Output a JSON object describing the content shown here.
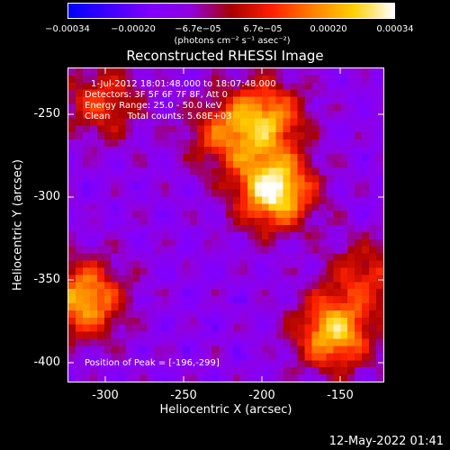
{
  "colorbar": {
    "tick_labels": [
      "−0.00034",
      "−0.00020",
      "−6.7e−05",
      "6.7e−05",
      "0.00020",
      "0.00034"
    ],
    "units": "(photons cm⁻² s⁻¹ asec⁻²)",
    "colors": [
      "#0000ff",
      "#4000ff",
      "#8000ff",
      "#9000e0",
      "#a80000",
      "#ff2000",
      "#ff8000",
      "#ffd000",
      "#ffffff"
    ]
  },
  "title": "Reconstructed RHESSI Image",
  "annotations": {
    "time_range": "1-Jul-2012 18:01:48.000 to 18:07:48.000",
    "detectors": "Detectors: 3F 5F 6F 7F 8F, Att 0",
    "energy_range": "Energy Range: 25.0 - 50.0 keV",
    "clean_counts": "Clean      Total counts: 5.68E+03",
    "peak_position": "Position of Peak = [-196,-299]"
  },
  "x_axis": {
    "label": "Heliocentric X (arcsec)",
    "ticks": [
      "-300",
      "-250",
      "-200",
      "-150"
    ],
    "range": [
      -320,
      -130
    ]
  },
  "y_axis": {
    "label": "Heliocentric Y (arcsec)",
    "ticks": [
      "-250",
      "-300",
      "-350",
      "-400"
    ],
    "range": [
      -415,
      -225
    ]
  },
  "image": {
    "peak": [
      -196,
      -299
    ],
    "sources": [
      {
        "x": -196,
        "y": -299,
        "amp": 1.0
      },
      {
        "x": -200,
        "y": -255,
        "amp": 0.65
      },
      {
        "x": -225,
        "y": -265,
        "amp": 0.5
      },
      {
        "x": -160,
        "y": -385,
        "amp": 0.8
      },
      {
        "x": -310,
        "y": -365,
        "amp": 0.75
      },
      {
        "x": -300,
        "y": -245,
        "amp": 0.45
      },
      {
        "x": -140,
        "y": -350,
        "amp": 0.4
      }
    ]
  },
  "footer": {
    "timestamp": "12-May-2022 01:41"
  }
}
